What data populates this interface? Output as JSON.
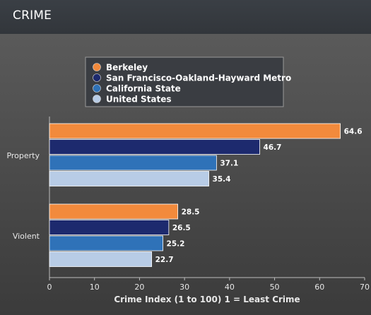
{
  "header": {
    "title": "CRIME"
  },
  "chart_data": {
    "type": "bar",
    "orientation": "horizontal",
    "categories": [
      "Property",
      "Violent"
    ],
    "series": [
      {
        "name": "Berkeley",
        "color": "#f28a3c",
        "values": [
          64.6,
          28.5
        ]
      },
      {
        "name": "San Francisco-Oakland-Hayward Metro",
        "color": "#1d2a6e",
        "values": [
          46.7,
          26.5
        ]
      },
      {
        "name": "California State",
        "color": "#2f72b8",
        "values": [
          37.1,
          25.2
        ]
      },
      {
        "name": "United States",
        "color": "#b8cce6",
        "values": [
          35.4,
          22.7
        ]
      }
    ],
    "xlabel": "Crime Index (1 to 100) 1 = Least Crime",
    "xlim": [
      0,
      70
    ],
    "xticks": [
      0,
      10,
      20,
      30,
      40,
      50,
      60,
      70
    ],
    "legend_position": "top-center",
    "grid": false
  }
}
